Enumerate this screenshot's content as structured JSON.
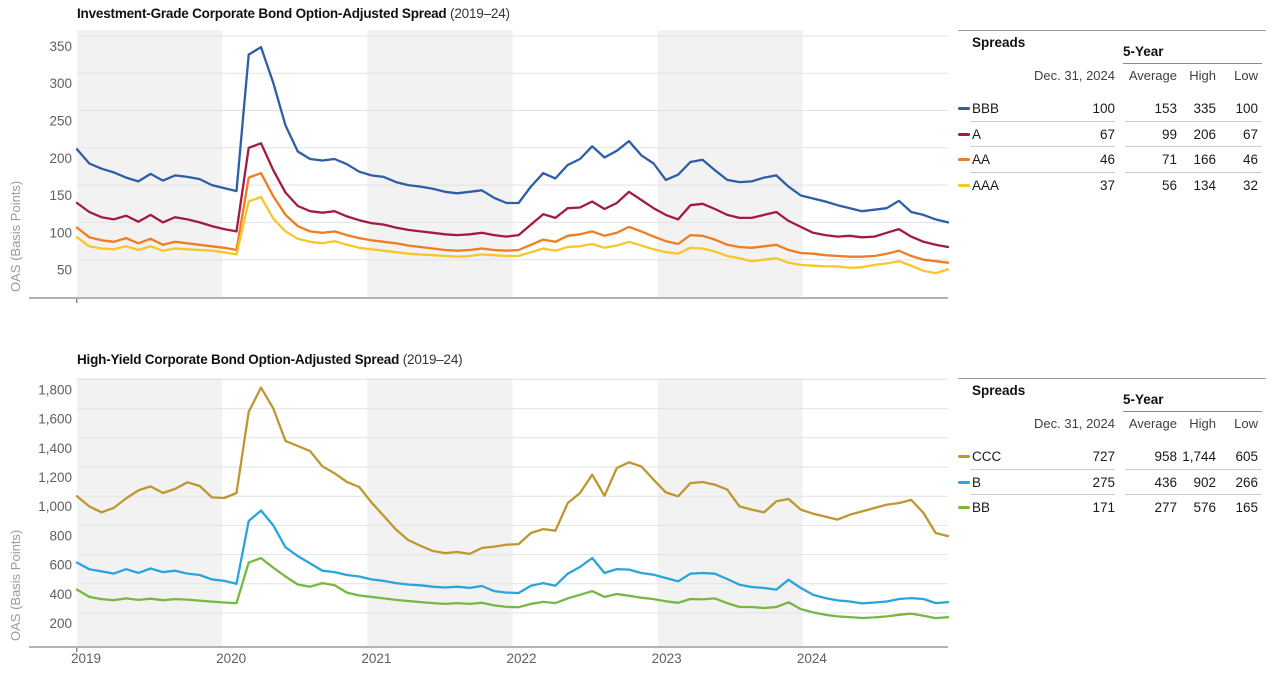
{
  "colors": {
    "year_band": "#f2f2f2",
    "gridline": "#e3e3e3",
    "axis_line": "#b3b3b3",
    "tick_label": "#5f5f5f",
    "axis_title": "#9b9b9b"
  },
  "chart_data": [
    {
      "type": "line",
      "title": "Investment-Grade Corporate Bond Option-Adjusted Spread",
      "subtitle": "(2019–24)",
      "ylabel": "OAS (Basis Points)",
      "x_labels": [
        "2019",
        "2020",
        "2021",
        "2022",
        "2023",
        "2024"
      ],
      "show_x_labels": false,
      "y_ticks": [
        50,
        100,
        150,
        200,
        250,
        300,
        350
      ],
      "y_tick_labels": [
        "50",
        "100",
        "150",
        "200",
        "250",
        "300",
        "350"
      ],
      "ylim": [
        0,
        358
      ],
      "grid": true,
      "legend_position": "right-table",
      "points_per_year": 12,
      "series": [
        {
          "name": "BBB",
          "color": "#2d5ea6",
          "values": [
            198,
            179,
            172,
            167,
            160,
            155,
            165,
            156,
            163,
            161,
            158,
            150,
            146,
            142,
            325,
            335,
            287,
            230,
            195,
            185,
            183,
            185,
            178,
            168,
            163,
            161,
            154,
            150,
            148,
            145,
            141,
            139,
            141,
            143,
            133,
            126,
            126,
            148,
            166,
            159,
            177,
            185,
            202,
            187,
            196,
            209,
            190,
            179,
            157,
            164,
            181,
            184,
            170,
            157,
            154,
            155,
            160,
            163,
            148,
            136,
            132,
            128,
            123,
            119,
            115,
            117,
            119,
            129,
            114,
            110,
            104,
            100
          ]
        },
        {
          "name": "A",
          "color": "#a21c40",
          "values": [
            126,
            114,
            107,
            104,
            109,
            101,
            110,
            100,
            107,
            104,
            100,
            95,
            91,
            88,
            200,
            206,
            170,
            140,
            122,
            115,
            113,
            115,
            108,
            103,
            99,
            97,
            93,
            90,
            88,
            86,
            84,
            83,
            84,
            86,
            83,
            81,
            83,
            97,
            111,
            106,
            119,
            120,
            128,
            118,
            126,
            141,
            130,
            119,
            110,
            104,
            123,
            125,
            118,
            110,
            106,
            106,
            110,
            114,
            102,
            94,
            86,
            83,
            81,
            82,
            80,
            81,
            86,
            91,
            81,
            74,
            70,
            67
          ]
        },
        {
          "name": "AA",
          "color": "#ef7d22",
          "values": [
            93,
            80,
            76,
            74,
            79,
            72,
            78,
            70,
            74,
            72,
            70,
            68,
            66,
            63,
            160,
            166,
            135,
            110,
            95,
            88,
            86,
            88,
            83,
            79,
            76,
            74,
            72,
            69,
            67,
            65,
            63,
            62,
            63,
            65,
            63,
            62,
            63,
            70,
            77,
            74,
            82,
            84,
            88,
            82,
            86,
            94,
            88,
            81,
            75,
            71,
            83,
            82,
            77,
            70,
            67,
            66,
            68,
            70,
            63,
            59,
            58,
            56,
            55,
            54,
            54,
            55,
            58,
            62,
            55,
            50,
            48,
            46
          ]
        },
        {
          "name": "AAA",
          "color": "#f8c62a",
          "values": [
            80,
            68,
            65,
            64,
            68,
            63,
            68,
            62,
            65,
            64,
            63,
            62,
            60,
            57,
            128,
            134,
            105,
            88,
            78,
            74,
            72,
            75,
            70,
            66,
            64,
            62,
            60,
            58,
            57,
            56,
            55,
            54,
            55,
            57,
            56,
            55,
            55,
            60,
            65,
            62,
            67,
            68,
            71,
            66,
            69,
            74,
            69,
            64,
            60,
            58,
            66,
            65,
            61,
            55,
            52,
            48,
            50,
            52,
            46,
            43,
            42,
            41,
            41,
            39,
            40,
            43,
            45,
            48,
            42,
            35,
            32,
            37
          ]
        }
      ],
      "table": {
        "title": "Spreads",
        "date_header": "Dec. 31, 2024",
        "group_header": "5-Year",
        "stat_headers": [
          "Average",
          "High",
          "Low"
        ],
        "rows": [
          {
            "label": "BBB",
            "color": "#2d5ea6",
            "current": "100",
            "average": "153",
            "high": "335",
            "low": "100"
          },
          {
            "label": "A",
            "color": "#a21c40",
            "current": "67",
            "average": "99",
            "high": "206",
            "low": "67"
          },
          {
            "label": "AA",
            "color": "#ef7d22",
            "current": "46",
            "average": "71",
            "high": "166",
            "low": "46"
          },
          {
            "label": "AAA",
            "color": "#f8c62a",
            "current": "37",
            "average": "56",
            "high": "134",
            "low": "32"
          }
        ]
      }
    },
    {
      "type": "line",
      "title": "High-Yield Corporate Bond Option-Adjusted Spread",
      "subtitle": "(2019–24)",
      "ylabel": "OAS (Basis Points)",
      "x_labels": [
        "2019",
        "2020",
        "2021",
        "2022",
        "2023",
        "2024"
      ],
      "show_x_labels": true,
      "y_ticks": [
        200,
        400,
        600,
        800,
        1000,
        1200,
        1400,
        1600,
        1800
      ],
      "y_tick_labels": [
        "200",
        "400",
        "600",
        "800",
        "1,000",
        "1,200",
        "1,400",
        "1,600",
        "1,800"
      ],
      "ylim": [
        0,
        1810
      ],
      "grid": true,
      "legend_position": "right-table",
      "points_per_year": 12,
      "series": [
        {
          "name": "CCC",
          "color": "#bf9730",
          "values": [
            1000,
            930,
            890,
            920,
            985,
            1040,
            1067,
            1022,
            1050,
            1095,
            1070,
            992,
            988,
            1022,
            1578,
            1744,
            1601,
            1379,
            1344,
            1309,
            1204,
            1157,
            1098,
            1063,
            958,
            865,
            771,
            700,
            660,
            625,
            610,
            618,
            605,
            645,
            655,
            668,
            672,
            748,
            775,
            764,
            953,
            1022,
            1147,
            1003,
            1193,
            1232,
            1204,
            1113,
            1026,
            999,
            1090,
            1097,
            1079,
            1045,
            930,
            908,
            889,
            965,
            981,
            908,
            880,
            860,
            840,
            873,
            896,
            919,
            942,
            953,
            975,
            885,
            748,
            727
          ]
        },
        {
          "name": "B",
          "color": "#29a4dc",
          "values": [
            545,
            500,
            485,
            470,
            500,
            475,
            505,
            480,
            490,
            470,
            460,
            430,
            420,
            400,
            830,
            902,
            800,
            650,
            590,
            540,
            490,
            480,
            460,
            450,
            430,
            420,
            405,
            395,
            390,
            380,
            375,
            380,
            372,
            385,
            350,
            340,
            337,
            387,
            405,
            387,
            469,
            515,
            577,
            474,
            501,
            497,
            474,
            462,
            440,
            417,
            469,
            474,
            469,
            433,
            394,
            378,
            371,
            360,
            428,
            371,
            325,
            302,
            286,
            279,
            266,
            272,
            279,
            296,
            302,
            296,
            268,
            275
          ]
        },
        {
          "name": "BB",
          "color": "#77b843",
          "values": [
            360,
            310,
            295,
            288,
            300,
            290,
            298,
            288,
            295,
            292,
            285,
            278,
            272,
            268,
            545,
            576,
            510,
            450,
            395,
            380,
            405,
            390,
            340,
            320,
            310,
            300,
            290,
            282,
            275,
            268,
            262,
            268,
            262,
            270,
            252,
            242,
            240,
            262,
            276,
            268,
            300,
            325,
            350,
            310,
            330,
            318,
            305,
            295,
            280,
            270,
            296,
            293,
            300,
            268,
            241,
            241,
            234,
            241,
            273,
            227,
            204,
            188,
            177,
            172,
            166,
            170,
            177,
            188,
            196,
            181,
            165,
            171
          ]
        }
      ],
      "table": {
        "title": "Spreads",
        "date_header": "Dec. 31, 2024",
        "group_header": "5-Year",
        "stat_headers": [
          "Average",
          "High",
          "Low"
        ],
        "rows": [
          {
            "label": "CCC",
            "color": "#bf9730",
            "current": "727",
            "average": "958",
            "high": "1,744",
            "low": "605"
          },
          {
            "label": "B",
            "color": "#29a4dc",
            "current": "275",
            "average": "436",
            "high": "902",
            "low": "266"
          },
          {
            "label": "BB",
            "color": "#77b843",
            "current": "171",
            "average": "277",
            "high": "576",
            "low": "165"
          }
        ]
      }
    }
  ]
}
